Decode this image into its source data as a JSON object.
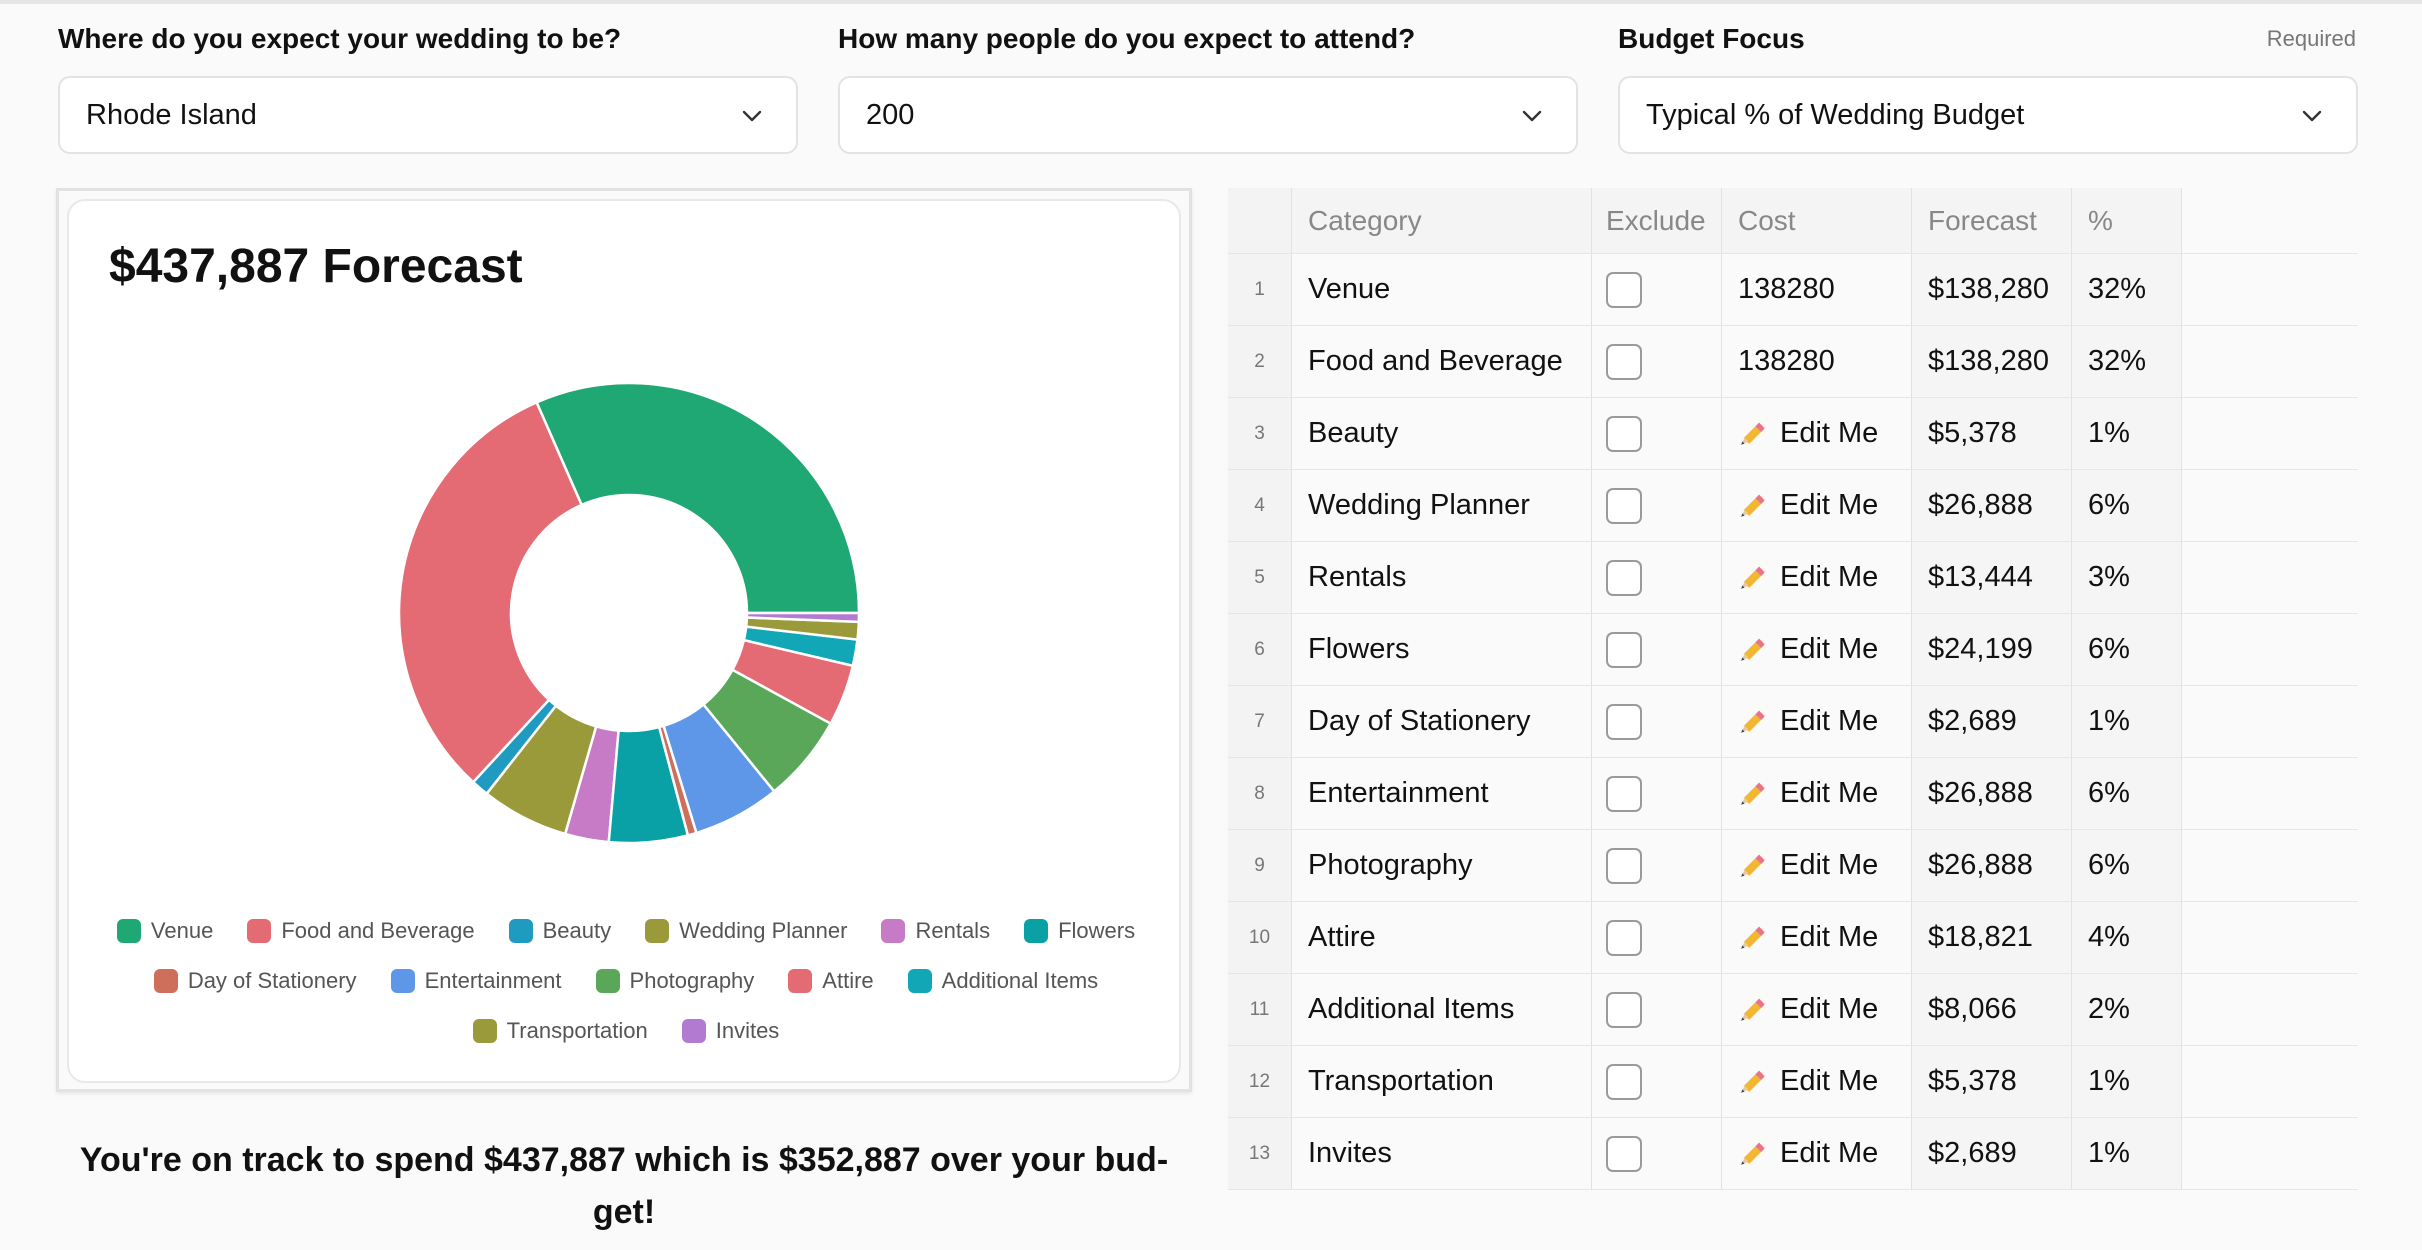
{
  "filters": {
    "location": {
      "label": "Where do you expect your wedding to be?",
      "value": "Rhode Island"
    },
    "guests": {
      "label": "How many people do you expect to attend?",
      "value": "200"
    },
    "budget_focus": {
      "label": "Budget Focus",
      "required": "Required",
      "value": "Typical % of Wedding Budget"
    }
  },
  "summary": "You're on track to spend $437,887 which is $352,887 over your bud-get!",
  "table": {
    "headers": {
      "category": "Category",
      "exclude": "Exclude",
      "cost": "Cost",
      "forecast": "Forecast",
      "pct": "%"
    },
    "rows": [
      {
        "num": "1",
        "category": "Venue",
        "cost": "138280",
        "forecast": "$138,280",
        "pct": "32%",
        "editable": false
      },
      {
        "num": "2",
        "category": "Food and Beverage",
        "cost": "138280",
        "forecast": "$138,280",
        "pct": "32%",
        "editable": false
      },
      {
        "num": "3",
        "category": "Beauty",
        "cost": "Edit Me",
        "forecast": "$5,378",
        "pct": "1%",
        "editable": true
      },
      {
        "num": "4",
        "category": "Wedding Planner",
        "cost": "Edit Me",
        "forecast": "$26,888",
        "pct": "6%",
        "editable": true
      },
      {
        "num": "5",
        "category": "Rentals",
        "cost": "Edit Me",
        "forecast": "$13,444",
        "pct": "3%",
        "editable": true
      },
      {
        "num": "6",
        "category": "Flowers",
        "cost": "Edit Me",
        "forecast": "$24,199",
        "pct": "6%",
        "editable": true
      },
      {
        "num": "7",
        "category": "Day of Stationery",
        "cost": "Edit Me",
        "forecast": "$2,689",
        "pct": "1%",
        "editable": true
      },
      {
        "num": "8",
        "category": "Entertainment",
        "cost": "Edit Me",
        "forecast": "$26,888",
        "pct": "6%",
        "editable": true
      },
      {
        "num": "9",
        "category": "Photography",
        "cost": "Edit Me",
        "forecast": "$26,888",
        "pct": "6%",
        "editable": true
      },
      {
        "num": "10",
        "category": "Attire",
        "cost": "Edit Me",
        "forecast": "$18,821",
        "pct": "4%",
        "editable": true
      },
      {
        "num": "11",
        "category": "Additional Items",
        "cost": "Edit Me",
        "forecast": "$8,066",
        "pct": "2%",
        "editable": true
      },
      {
        "num": "12",
        "category": "Transportation",
        "cost": "Edit Me",
        "forecast": "$5,378",
        "pct": "1%",
        "editable": true
      },
      {
        "num": "13",
        "category": "Invites",
        "cost": "Edit Me",
        "forecast": "$2,689",
        "pct": "1%",
        "editable": true
      }
    ]
  },
  "chart_data": {
    "type": "pie",
    "title": "$437,887 Forecast",
    "categories": [
      "Venue",
      "Food and Beverage",
      "Beauty",
      "Wedding Planner",
      "Rentals",
      "Flowers",
      "Day of Stationery",
      "Entertainment",
      "Photography",
      "Attire",
      "Additional Items",
      "Transportation",
      "Invites"
    ],
    "values": [
      138280,
      138280,
      5378,
      26888,
      13444,
      24199,
      2689,
      26888,
      26888,
      18821,
      8066,
      5378,
      2689
    ],
    "colors": [
      "#1fa774",
      "#e46b74",
      "#1f9bc2",
      "#9a9a3a",
      "#c77ac6",
      "#0aa1a6",
      "#cd6f5b",
      "#5f97e8",
      "#5aa75a",
      "#e46b74",
      "#11a7b6",
      "#9a9a3a",
      "#b27ad1"
    ],
    "legend_position": "bottom",
    "donut": true
  }
}
